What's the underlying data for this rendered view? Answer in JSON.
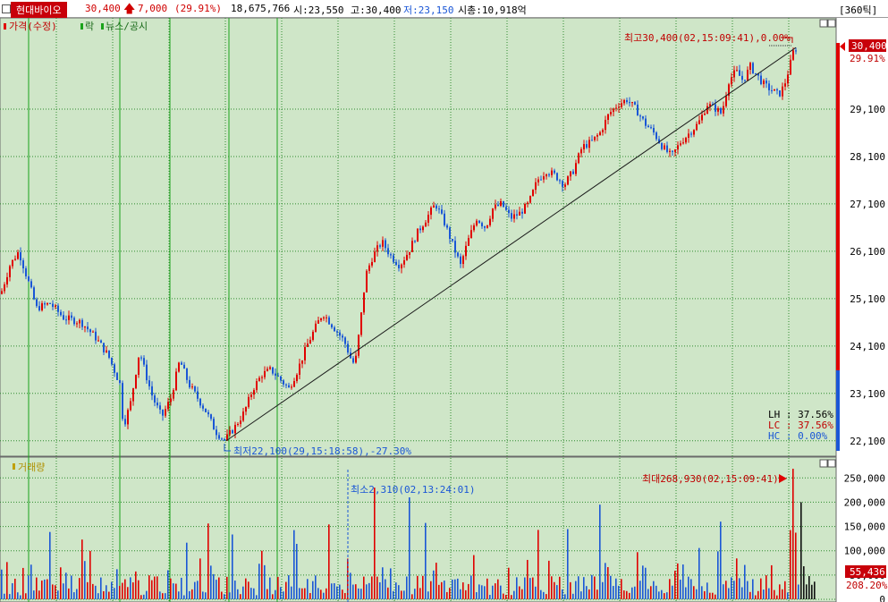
{
  "header": {
    "name": "현대바이오",
    "price": "30,400",
    "change": "7,000",
    "change_pct": "(29.91%)",
    "volume": "18,675,766",
    "open": "시:23,550",
    "high": "고:30,400",
    "low": "저:23,150",
    "market_cap": "시총:10,918억",
    "period": "[360틱]"
  },
  "legend": {
    "price": "가격(수정)",
    "rak": "락",
    "news": "뉴스/공시",
    "volume": "거래량"
  },
  "annotations": {
    "max_price": "최고30,400(02,15:09:41),0.00%",
    "min_price": "최저22,100(29,15:18:58),-27.30%",
    "max_volume": "최대268,930(02,15:09:41)",
    "min_volume": "최소2,310(02,13:24:01)",
    "lh": "LH : 37.56%",
    "lc": "LC : 37.56%",
    "hc": "HC :  0.00%"
  },
  "right_axis": {
    "current_price": "30,400",
    "current_pct": "29.91%",
    "current_volume": "55,436",
    "volume_pct": "208.20%"
  },
  "colors": {
    "background": "#cfe6c8",
    "up": "#e00000",
    "down": "#1a56d6",
    "grid": "#2d8a2d",
    "session_line": "#1aa31a",
    "accent": "#c8000a"
  },
  "chart_data": [
    {
      "type": "candlestick",
      "series_name": "가격(수정)",
      "yticks": [
        22100,
        23100,
        24100,
        25100,
        26100,
        27100,
        28100,
        29100
      ],
      "ylim": [
        21850,
        30950
      ],
      "high": 30400,
      "low": 22100,
      "close": 30400,
      "path": [
        [
          0,
          25200
        ],
        [
          10,
          25800
        ],
        [
          20,
          26100
        ],
        [
          30,
          25500
        ],
        [
          40,
          24900
        ],
        [
          55,
          25000
        ],
        [
          70,
          24700
        ],
        [
          90,
          24600
        ],
        [
          105,
          24300
        ],
        [
          120,
          23900
        ],
        [
          133,
          23300
        ],
        [
          137,
          22400
        ],
        [
          145,
          22900
        ],
        [
          155,
          24000
        ],
        [
          162,
          23500
        ],
        [
          170,
          23000
        ],
        [
          180,
          22600
        ],
        [
          190,
          23000
        ],
        [
          200,
          23800
        ],
        [
          210,
          23300
        ],
        [
          220,
          23000
        ],
        [
          230,
          22700
        ],
        [
          240,
          22300
        ],
        [
          250,
          22100
        ],
        [
          262,
          22400
        ],
        [
          272,
          22700
        ],
        [
          282,
          23200
        ],
        [
          292,
          23500
        ],
        [
          302,
          23600
        ],
        [
          312,
          23400
        ],
        [
          322,
          23200
        ],
        [
          332,
          23600
        ],
        [
          342,
          24100
        ],
        [
          352,
          24500
        ],
        [
          360,
          24800
        ],
        [
          368,
          24600
        ],
        [
          376,
          24400
        ],
        [
          384,
          24200
        ],
        [
          392,
          23800
        ],
        [
          396,
          23700
        ],
        [
          402,
          24600
        ],
        [
          408,
          25600
        ],
        [
          416,
          26000
        ],
        [
          426,
          26300
        ],
        [
          436,
          26000
        ],
        [
          446,
          25800
        ],
        [
          456,
          26100
        ],
        [
          466,
          26500
        ],
        [
          476,
          26800
        ],
        [
          486,
          27100
        ],
        [
          496,
          26700
        ],
        [
          506,
          26200
        ],
        [
          514,
          25800
        ],
        [
          522,
          26300
        ],
        [
          532,
          26800
        ],
        [
          542,
          26600
        ],
        [
          550,
          27000
        ],
        [
          560,
          27100
        ],
        [
          570,
          26800
        ],
        [
          580,
          26900
        ],
        [
          590,
          27100
        ],
        [
          600,
          27600
        ],
        [
          610,
          27800
        ],
        [
          620,
          27700
        ],
        [
          630,
          27500
        ],
        [
          640,
          27800
        ],
        [
          650,
          28300
        ],
        [
          660,
          28400
        ],
        [
          670,
          28600
        ],
        [
          680,
          29000
        ],
        [
          690,
          29200
        ],
        [
          700,
          29300
        ],
        [
          710,
          29100
        ],
        [
          720,
          28800
        ],
        [
          730,
          28600
        ],
        [
          740,
          28300
        ],
        [
          750,
          28100
        ],
        [
          760,
          28400
        ],
        [
          770,
          28600
        ],
        [
          780,
          28800
        ],
        [
          790,
          29200
        ],
        [
          800,
          29100
        ],
        [
          806,
          29000
        ],
        [
          814,
          29700
        ],
        [
          822,
          29900
        ],
        [
          830,
          29700
        ],
        [
          838,
          30000
        ],
        [
          846,
          29800
        ],
        [
          854,
          29600
        ],
        [
          862,
          29500
        ],
        [
          870,
          29400
        ],
        [
          876,
          29600
        ],
        [
          882,
          30000
        ],
        [
          886,
          30300
        ],
        [
          890,
          30400
        ]
      ],
      "trendline": {
        "start": [
          253,
          22100
        ],
        "end": [
          890,
          30400
        ]
      }
    },
    {
      "type": "bar",
      "series_name": "거래량",
      "yticks": [
        0,
        50000,
        100000,
        150000,
        200000,
        250000
      ],
      "ylim": [
        0,
        280000
      ],
      "max": 268930,
      "min": 2310,
      "current": 55436
    }
  ]
}
